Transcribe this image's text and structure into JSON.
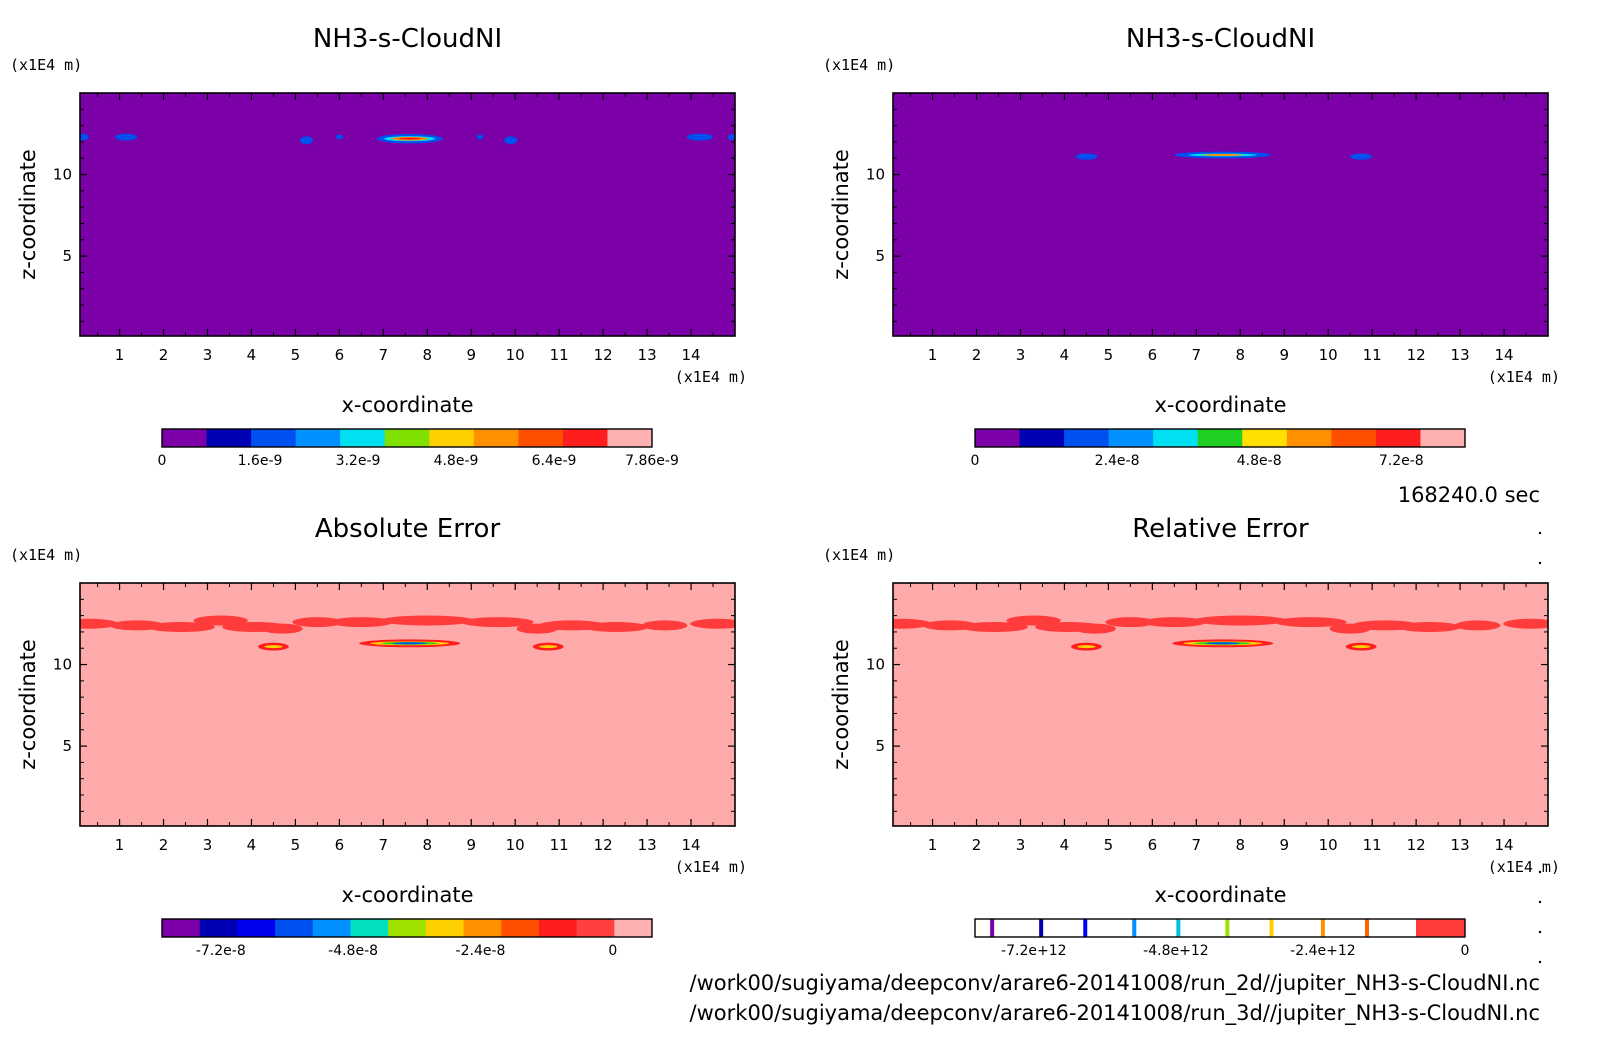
{
  "timestamp": "168240.0 sec",
  "file_paths": [
    "/work00/sugiyama/deepconv/arare6-20141008/run_2d//jupiter_NH3-s-CloudNI.nc",
    "/work00/sugiyama/deepconv/arare6-20141008/run_3d//jupiter_NH3-s-CloudNI.nc"
  ],
  "chart_data": [
    {
      "type": "heatmap",
      "title": "NH3-s-CloudNI",
      "xlabel": "x-coordinate",
      "ylabel": "z-coordinate",
      "x_unit": "(x1E4 m)",
      "y_unit": "(x1E4 m)",
      "xlim": [
        0.1,
        15
      ],
      "ylim": [
        0.1,
        15
      ],
      "x_ticks": [
        "1",
        "2",
        "3",
        "4",
        "5",
        "6",
        "7",
        "8",
        "9",
        "10",
        "11",
        "12",
        "13",
        "14"
      ],
      "y_ticks": [
        "5",
        "10"
      ],
      "background_color": "#7b00a8",
      "colorbar": {
        "colors": [
          "#7b00a8",
          "#0000b4",
          "#0050f0",
          "#0090ff",
          "#00e0f0",
          "#80e000",
          "#ffd000",
          "#ff9000",
          "#ff5000",
          "#ff1e1e",
          "#ffb0b0"
        ],
        "tick_labels": [
          "0",
          "1.6e-9",
          "3.2e-9",
          "4.8e-9",
          "6.4e-9",
          "7.86e-9"
        ],
        "tick_positions": [
          0,
          0.2,
          0.4,
          0.6,
          0.8,
          1.0
        ]
      },
      "features": [
        {
          "x": 0.15,
          "z": 12.3,
          "rx": 0.15,
          "rz": 0.12,
          "levels": [
            "#0050f0"
          ]
        },
        {
          "x": 1.15,
          "z": 12.3,
          "rx": 0.25,
          "rz": 0.12,
          "levels": [
            "#0050f0"
          ]
        },
        {
          "x": 5.25,
          "z": 12.1,
          "rx": 0.15,
          "rz": 0.15,
          "levels": [
            "#0050f0"
          ]
        },
        {
          "x": 6.0,
          "z": 12.3,
          "rx": 0.08,
          "rz": 0.06,
          "levels": [
            "#0050f0"
          ]
        },
        {
          "x": 7.6,
          "z": 12.2,
          "rx": 0.75,
          "rz": 0.2,
          "levels": [
            "#0050f0",
            "#00e0f0",
            "#ff9000",
            "#ff1e1e"
          ]
        },
        {
          "x": 9.2,
          "z": 12.3,
          "rx": 0.08,
          "rz": 0.06,
          "levels": [
            "#0050f0"
          ]
        },
        {
          "x": 9.9,
          "z": 12.1,
          "rx": 0.15,
          "rz": 0.15,
          "levels": [
            "#0050f0"
          ]
        },
        {
          "x": 14.2,
          "z": 12.3,
          "rx": 0.3,
          "rz": 0.12,
          "levels": [
            "#0050f0"
          ]
        },
        {
          "x": 14.92,
          "z": 12.3,
          "rx": 0.08,
          "rz": 0.1,
          "levels": [
            "#0050f0"
          ]
        }
      ]
    },
    {
      "type": "heatmap",
      "title": "NH3-s-CloudNI",
      "xlabel": "x-coordinate",
      "ylabel": "z-coordinate",
      "x_unit": "(x1E4 m)",
      "y_unit": "(x1E4 m)",
      "xlim": [
        0.1,
        15
      ],
      "ylim": [
        0.1,
        15
      ],
      "x_ticks": [
        "1",
        "2",
        "3",
        "4",
        "5",
        "6",
        "7",
        "8",
        "9",
        "10",
        "11",
        "12",
        "13",
        "14"
      ],
      "y_ticks": [
        "5",
        "10"
      ],
      "background_color": "#7b00a8",
      "colorbar": {
        "colors": [
          "#7b00a8",
          "#0000b4",
          "#0050f0",
          "#0090ff",
          "#00e0f0",
          "#20d020",
          "#ffe000",
          "#ff9000",
          "#ff5000",
          "#ff1e1e",
          "#ffb0b0"
        ],
        "tick_labels": [
          "0",
          "2.4e-8",
          "4.8e-8",
          "7.2e-8"
        ],
        "tick_positions": [
          0,
          0.29,
          0.58,
          0.87
        ]
      },
      "features": [
        {
          "x": 4.5,
          "z": 11.1,
          "rx": 0.25,
          "rz": 0.1,
          "levels": [
            "#0050f0"
          ]
        },
        {
          "x": 7.6,
          "z": 11.2,
          "rx": 1.1,
          "rz": 0.12,
          "levels": [
            "#0050f0",
            "#00e0f0",
            "#ff9000"
          ]
        },
        {
          "x": 10.75,
          "z": 11.1,
          "rx": 0.25,
          "rz": 0.1,
          "levels": [
            "#0050f0"
          ]
        }
      ]
    },
    {
      "type": "heatmap",
      "title": "Absolute Error",
      "xlabel": "x-coordinate",
      "ylabel": "z-coordinate",
      "x_unit": "(x1E4 m)",
      "y_unit": "(x1E4 m)",
      "xlim": [
        0.1,
        15
      ],
      "ylim": [
        0.1,
        15
      ],
      "x_ticks": [
        "1",
        "2",
        "3",
        "4",
        "5",
        "6",
        "7",
        "8",
        "9",
        "10",
        "11",
        "12",
        "13",
        "14"
      ],
      "y_ticks": [
        "5",
        "10"
      ],
      "background_color": "#ffaaaa",
      "colorbar": {
        "colors": [
          "#7b00a8",
          "#0000b4",
          "#0000f0",
          "#0050f0",
          "#0090ff",
          "#00e0c0",
          "#a0e000",
          "#ffd000",
          "#ff9000",
          "#ff5000",
          "#ff1e1e",
          "#ff4040",
          "#ffb0b0"
        ],
        "tick_labels": [
          "-7.2e-8",
          "-4.8e-8",
          "-2.4e-8",
          "0"
        ],
        "tick_positions": [
          0.12,
          0.39,
          0.65,
          0.92
        ]
      },
      "band": [
        [
          0.3,
          12.5,
          0.35
        ],
        [
          1.4,
          12.4,
          0.3
        ],
        [
          2.4,
          12.3,
          0.45
        ],
        [
          3.3,
          12.7,
          0.3
        ],
        [
          4.1,
          12.3,
          0.45
        ],
        [
          4.7,
          12.2,
          0.15
        ],
        [
          5.5,
          12.6,
          0.25
        ],
        [
          6.5,
          12.6,
          0.4
        ],
        [
          8.0,
          12.7,
          0.75
        ],
        [
          9.6,
          12.6,
          0.5
        ],
        [
          10.5,
          12.2,
          0.15
        ],
        [
          11.3,
          12.4,
          0.45
        ],
        [
          12.3,
          12.3,
          0.4
        ],
        [
          13.4,
          12.4,
          0.2
        ],
        [
          14.6,
          12.5,
          0.3
        ]
      ],
      "features": [
        {
          "x": 4.5,
          "z": 11.1,
          "rx": 0.35,
          "rz": 0.15,
          "levels": [
            "#ff1e1e",
            "#ffd000"
          ]
        },
        {
          "x": 7.6,
          "z": 11.3,
          "rx": 1.15,
          "rz": 0.15,
          "levels": [
            "#ff1e1e",
            "#ffd000",
            "#20d020",
            "#0050f0"
          ]
        },
        {
          "x": 10.75,
          "z": 11.1,
          "rx": 0.35,
          "rz": 0.15,
          "levels": [
            "#ff1e1e",
            "#ffd000"
          ]
        }
      ]
    },
    {
      "type": "heatmap",
      "title": "Relative Error",
      "xlabel": "x-coordinate",
      "ylabel": "z-coordinate",
      "x_unit": "(x1E4 m)",
      "y_unit": "(x1E4 m)",
      "xlim": [
        0.1,
        15
      ],
      "ylim": [
        0.1,
        15
      ],
      "x_ticks": [
        "1",
        "2",
        "3",
        "4",
        "5",
        "6",
        "7",
        "8",
        "9",
        "10",
        "11",
        "12",
        "13",
        "14"
      ],
      "y_ticks": [
        "5",
        "10"
      ],
      "background_color": "#ffaaaa",
      "colorbar": {
        "style": "lines",
        "line_colors": [
          "#7b00a8",
          "#0000b4",
          "#0000f0",
          "#0090ff",
          "#00c0e0",
          "#a0e000",
          "#ffd000",
          "#ff9000",
          "#ff6000"
        ],
        "line_positions": [
          0.035,
          0.135,
          0.225,
          0.325,
          0.415,
          0.515,
          0.605,
          0.71,
          0.8
        ],
        "end_color": "#ff3c3c",
        "end_start": 0.9,
        "tick_labels": [
          "-7.2e+12",
          "-4.8e+12",
          "-2.4e+12",
          "0"
        ],
        "tick_positions": [
          0.12,
          0.41,
          0.71,
          1.0
        ]
      },
      "band": [
        [
          0.3,
          12.5,
          0.35
        ],
        [
          1.4,
          12.4,
          0.3
        ],
        [
          2.4,
          12.3,
          0.45
        ],
        [
          3.3,
          12.7,
          0.3
        ],
        [
          4.1,
          12.3,
          0.45
        ],
        [
          4.7,
          12.2,
          0.15
        ],
        [
          5.5,
          12.6,
          0.25
        ],
        [
          6.5,
          12.6,
          0.4
        ],
        [
          8.0,
          12.7,
          0.75
        ],
        [
          9.6,
          12.6,
          0.5
        ],
        [
          10.5,
          12.2,
          0.15
        ],
        [
          11.3,
          12.4,
          0.45
        ],
        [
          12.3,
          12.3,
          0.4
        ],
        [
          13.4,
          12.4,
          0.2
        ],
        [
          14.6,
          12.5,
          0.3
        ]
      ],
      "features": [
        {
          "x": 4.5,
          "z": 11.1,
          "rx": 0.35,
          "rz": 0.15,
          "levels": [
            "#ff1e1e",
            "#ffd000"
          ]
        },
        {
          "x": 7.6,
          "z": 11.3,
          "rx": 1.15,
          "rz": 0.15,
          "levels": [
            "#ff1e1e",
            "#ffd000",
            "#20d020",
            "#0050f0"
          ]
        },
        {
          "x": 10.75,
          "z": 11.1,
          "rx": 0.35,
          "rz": 0.15,
          "levels": [
            "#ff1e1e",
            "#ffd000"
          ]
        }
      ]
    }
  ]
}
